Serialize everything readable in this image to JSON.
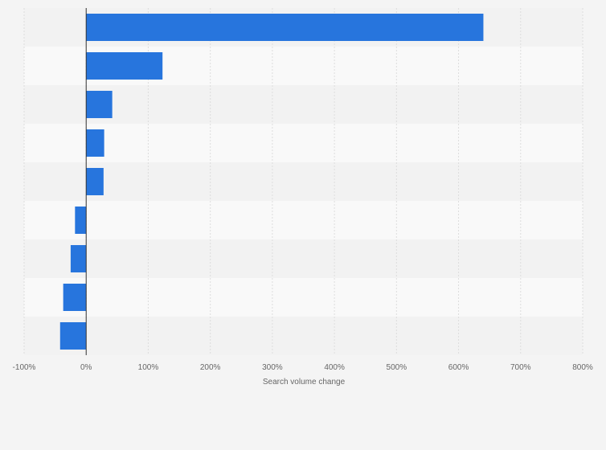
{
  "chart_data": {
    "type": "bar",
    "orientation": "horizontal",
    "categories": [
      "",
      "",
      "",
      "",
      "",
      "",
      "",
      "",
      ""
    ],
    "values": [
      640,
      123,
      42,
      29,
      28,
      -18,
      -25,
      -37,
      -42
    ],
    "xlabel": "Search volume change",
    "ylabel": "",
    "xlim": [
      -100,
      800
    ],
    "xticks": [
      "-100%",
      "0%",
      "100%",
      "200%",
      "300%",
      "400%",
      "500%",
      "600%",
      "700%",
      "800%"
    ],
    "grid": true,
    "legend": "none",
    "colors": {
      "bar": "#2775dd",
      "band_light": "#f9f9f9",
      "band_dark": "#f2f2f2",
      "grid": "#dddddd",
      "zero_line": "#333333",
      "text": "#666666"
    }
  }
}
